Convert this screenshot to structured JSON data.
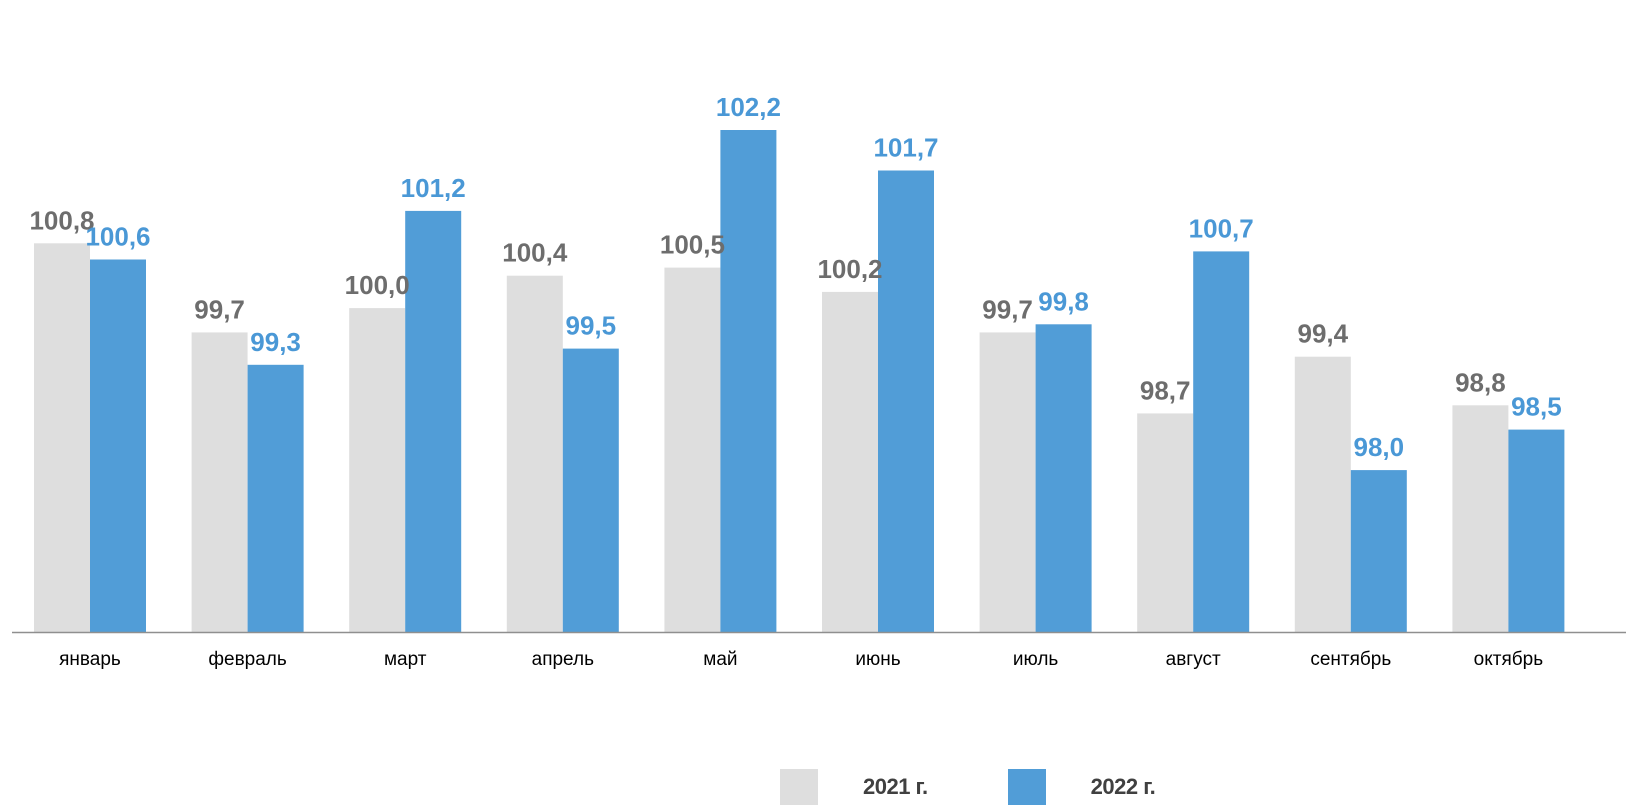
{
  "chart_data": {
    "type": "bar",
    "categories": [
      "январь",
      "февраль",
      "март",
      "апрель",
      "май",
      "июнь",
      "июль",
      "август",
      "сентябрь",
      "октябрь"
    ],
    "series": [
      {
        "name": "2021 г.",
        "values": [
          100.8,
          99.7,
          100.0,
          100.4,
          100.5,
          100.2,
          99.7,
          98.7,
          99.4,
          98.8
        ],
        "labels": [
          "100,8",
          "99,7",
          "100,0",
          "100,4",
          "100,5",
          "100,2",
          "99,7",
          "98,7",
          "99,4",
          "98,8"
        ],
        "color": "#dedede",
        "label_color": "#6d6d6d"
      },
      {
        "name": "2022 г.",
        "values": [
          100.6,
          99.3,
          101.2,
          99.5,
          102.2,
          101.7,
          99.8,
          100.7,
          98.0,
          98.5
        ],
        "labels": [
          "100,6",
          "99,3",
          "101,2",
          "99,5",
          "102,2",
          "101,7",
          "99,8",
          "100,7",
          "98,0",
          "98,5"
        ],
        "color": "#519dd7",
        "label_color": "#4a98d6"
      }
    ],
    "ylim": [
      96.0,
      103.2
    ],
    "grid": false,
    "legend_position": "bottom-center",
    "title": "",
    "xlabel": "",
    "ylabel": ""
  }
}
